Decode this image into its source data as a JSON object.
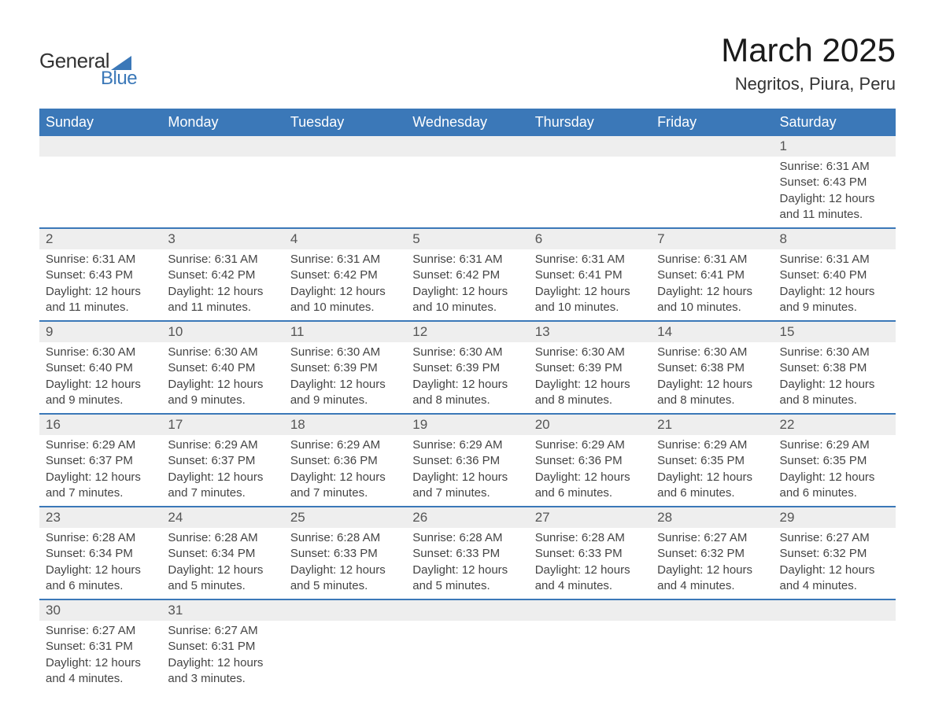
{
  "logo": {
    "text_top": "General",
    "text_bottom": "Blue",
    "triangle_color": "#3b78b8",
    "text_top_color": "#333333",
    "text_bottom_color": "#3b78b8"
  },
  "title": "March 2025",
  "location": "Negritos, Piura, Peru",
  "colors": {
    "header_bg": "#3b78b8",
    "header_text": "#ffffff",
    "day_number_bg": "#eeeeee",
    "text_color": "#444444",
    "border_color": "#3b78b8"
  },
  "dayHeaders": [
    "Sunday",
    "Monday",
    "Tuesday",
    "Wednesday",
    "Thursday",
    "Friday",
    "Saturday"
  ],
  "weeks": [
    [
      null,
      null,
      null,
      null,
      null,
      null,
      {
        "n": "1",
        "sunrise": "Sunrise: 6:31 AM",
        "sunset": "Sunset: 6:43 PM",
        "dl1": "Daylight: 12 hours",
        "dl2": "and 11 minutes."
      }
    ],
    [
      {
        "n": "2",
        "sunrise": "Sunrise: 6:31 AM",
        "sunset": "Sunset: 6:43 PM",
        "dl1": "Daylight: 12 hours",
        "dl2": "and 11 minutes."
      },
      {
        "n": "3",
        "sunrise": "Sunrise: 6:31 AM",
        "sunset": "Sunset: 6:42 PM",
        "dl1": "Daylight: 12 hours",
        "dl2": "and 11 minutes."
      },
      {
        "n": "4",
        "sunrise": "Sunrise: 6:31 AM",
        "sunset": "Sunset: 6:42 PM",
        "dl1": "Daylight: 12 hours",
        "dl2": "and 10 minutes."
      },
      {
        "n": "5",
        "sunrise": "Sunrise: 6:31 AM",
        "sunset": "Sunset: 6:42 PM",
        "dl1": "Daylight: 12 hours",
        "dl2": "and 10 minutes."
      },
      {
        "n": "6",
        "sunrise": "Sunrise: 6:31 AM",
        "sunset": "Sunset: 6:41 PM",
        "dl1": "Daylight: 12 hours",
        "dl2": "and 10 minutes."
      },
      {
        "n": "7",
        "sunrise": "Sunrise: 6:31 AM",
        "sunset": "Sunset: 6:41 PM",
        "dl1": "Daylight: 12 hours",
        "dl2": "and 10 minutes."
      },
      {
        "n": "8",
        "sunrise": "Sunrise: 6:31 AM",
        "sunset": "Sunset: 6:40 PM",
        "dl1": "Daylight: 12 hours",
        "dl2": "and 9 minutes."
      }
    ],
    [
      {
        "n": "9",
        "sunrise": "Sunrise: 6:30 AM",
        "sunset": "Sunset: 6:40 PM",
        "dl1": "Daylight: 12 hours",
        "dl2": "and 9 minutes."
      },
      {
        "n": "10",
        "sunrise": "Sunrise: 6:30 AM",
        "sunset": "Sunset: 6:40 PM",
        "dl1": "Daylight: 12 hours",
        "dl2": "and 9 minutes."
      },
      {
        "n": "11",
        "sunrise": "Sunrise: 6:30 AM",
        "sunset": "Sunset: 6:39 PM",
        "dl1": "Daylight: 12 hours",
        "dl2": "and 9 minutes."
      },
      {
        "n": "12",
        "sunrise": "Sunrise: 6:30 AM",
        "sunset": "Sunset: 6:39 PM",
        "dl1": "Daylight: 12 hours",
        "dl2": "and 8 minutes."
      },
      {
        "n": "13",
        "sunrise": "Sunrise: 6:30 AM",
        "sunset": "Sunset: 6:39 PM",
        "dl1": "Daylight: 12 hours",
        "dl2": "and 8 minutes."
      },
      {
        "n": "14",
        "sunrise": "Sunrise: 6:30 AM",
        "sunset": "Sunset: 6:38 PM",
        "dl1": "Daylight: 12 hours",
        "dl2": "and 8 minutes."
      },
      {
        "n": "15",
        "sunrise": "Sunrise: 6:30 AM",
        "sunset": "Sunset: 6:38 PM",
        "dl1": "Daylight: 12 hours",
        "dl2": "and 8 minutes."
      }
    ],
    [
      {
        "n": "16",
        "sunrise": "Sunrise: 6:29 AM",
        "sunset": "Sunset: 6:37 PM",
        "dl1": "Daylight: 12 hours",
        "dl2": "and 7 minutes."
      },
      {
        "n": "17",
        "sunrise": "Sunrise: 6:29 AM",
        "sunset": "Sunset: 6:37 PM",
        "dl1": "Daylight: 12 hours",
        "dl2": "and 7 minutes."
      },
      {
        "n": "18",
        "sunrise": "Sunrise: 6:29 AM",
        "sunset": "Sunset: 6:36 PM",
        "dl1": "Daylight: 12 hours",
        "dl2": "and 7 minutes."
      },
      {
        "n": "19",
        "sunrise": "Sunrise: 6:29 AM",
        "sunset": "Sunset: 6:36 PM",
        "dl1": "Daylight: 12 hours",
        "dl2": "and 7 minutes."
      },
      {
        "n": "20",
        "sunrise": "Sunrise: 6:29 AM",
        "sunset": "Sunset: 6:36 PM",
        "dl1": "Daylight: 12 hours",
        "dl2": "and 6 minutes."
      },
      {
        "n": "21",
        "sunrise": "Sunrise: 6:29 AM",
        "sunset": "Sunset: 6:35 PM",
        "dl1": "Daylight: 12 hours",
        "dl2": "and 6 minutes."
      },
      {
        "n": "22",
        "sunrise": "Sunrise: 6:29 AM",
        "sunset": "Sunset: 6:35 PM",
        "dl1": "Daylight: 12 hours",
        "dl2": "and 6 minutes."
      }
    ],
    [
      {
        "n": "23",
        "sunrise": "Sunrise: 6:28 AM",
        "sunset": "Sunset: 6:34 PM",
        "dl1": "Daylight: 12 hours",
        "dl2": "and 6 minutes."
      },
      {
        "n": "24",
        "sunrise": "Sunrise: 6:28 AM",
        "sunset": "Sunset: 6:34 PM",
        "dl1": "Daylight: 12 hours",
        "dl2": "and 5 minutes."
      },
      {
        "n": "25",
        "sunrise": "Sunrise: 6:28 AM",
        "sunset": "Sunset: 6:33 PM",
        "dl1": "Daylight: 12 hours",
        "dl2": "and 5 minutes."
      },
      {
        "n": "26",
        "sunrise": "Sunrise: 6:28 AM",
        "sunset": "Sunset: 6:33 PM",
        "dl1": "Daylight: 12 hours",
        "dl2": "and 5 minutes."
      },
      {
        "n": "27",
        "sunrise": "Sunrise: 6:28 AM",
        "sunset": "Sunset: 6:33 PM",
        "dl1": "Daylight: 12 hours",
        "dl2": "and 4 minutes."
      },
      {
        "n": "28",
        "sunrise": "Sunrise: 6:27 AM",
        "sunset": "Sunset: 6:32 PM",
        "dl1": "Daylight: 12 hours",
        "dl2": "and 4 minutes."
      },
      {
        "n": "29",
        "sunrise": "Sunrise: 6:27 AM",
        "sunset": "Sunset: 6:32 PM",
        "dl1": "Daylight: 12 hours",
        "dl2": "and 4 minutes."
      }
    ],
    [
      {
        "n": "30",
        "sunrise": "Sunrise: 6:27 AM",
        "sunset": "Sunset: 6:31 PM",
        "dl1": "Daylight: 12 hours",
        "dl2": "and 4 minutes."
      },
      {
        "n": "31",
        "sunrise": "Sunrise: 6:27 AM",
        "sunset": "Sunset: 6:31 PM",
        "dl1": "Daylight: 12 hours",
        "dl2": "and 3 minutes."
      },
      null,
      null,
      null,
      null,
      null
    ]
  ]
}
